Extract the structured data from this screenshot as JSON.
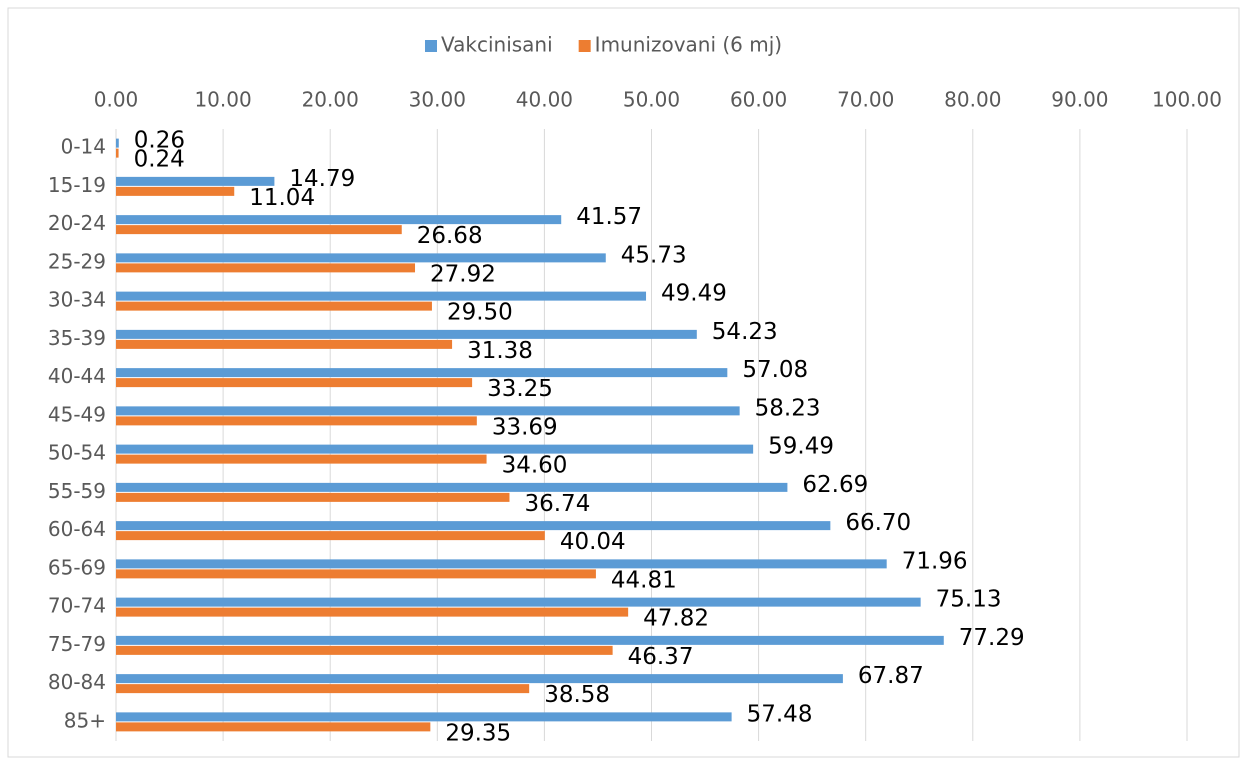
{
  "chart_data": {
    "type": "hbar",
    "categories": [
      "0-14",
      "15-19",
      "20-24",
      "25-29",
      "30-34",
      "35-39",
      "40-44",
      "45-49",
      "50-54",
      "55-59",
      "60-64",
      "65-69",
      "70-74",
      "75-79",
      "80-84",
      "85+"
    ],
    "series": [
      {
        "name": "Vakcinisani",
        "color": "#5b9bd5",
        "values": [
          0.26,
          14.79,
          41.57,
          45.73,
          49.49,
          54.23,
          57.08,
          58.23,
          59.49,
          62.69,
          66.7,
          71.96,
          75.13,
          77.29,
          67.87,
          57.48
        ],
        "value_labels": [
          "0.26",
          "14.79",
          "41.57",
          "45.73",
          "49.49",
          "54.23",
          "57.08",
          "58.23",
          "59.49",
          "62.69",
          "66.70",
          "71.96",
          "75.13",
          "77.29",
          "67.87",
          "57.48"
        ]
      },
      {
        "name": "Imunizovani (6 mj)",
        "color": "#ed7d31",
        "values": [
          0.24,
          11.04,
          26.68,
          27.92,
          29.5,
          31.38,
          33.25,
          33.69,
          34.6,
          36.74,
          40.04,
          44.81,
          47.82,
          46.37,
          38.58,
          29.35
        ],
        "value_labels": [
          "0.24",
          "11.04",
          "26.68",
          "27.92",
          "29.50",
          "31.38",
          "33.25",
          "33.69",
          "34.60",
          "36.74",
          "40.04",
          "44.81",
          "47.82",
          "46.37",
          "38.58",
          "29.35"
        ]
      }
    ],
    "xlim": [
      0,
      100
    ],
    "xticks": [
      {
        "value": 0,
        "label": "0.00"
      },
      {
        "value": 10,
        "label": "10.00"
      },
      {
        "value": 20,
        "label": "20.00"
      },
      {
        "value": 30,
        "label": "30.00"
      },
      {
        "value": 40,
        "label": "40.00"
      },
      {
        "value": 50,
        "label": "50.00"
      },
      {
        "value": 60,
        "label": "60.00"
      },
      {
        "value": 70,
        "label": "70.00"
      },
      {
        "value": 80,
        "label": "80.00"
      },
      {
        "value": 90,
        "label": "90.00"
      },
      {
        "value": 100,
        "label": "100.00"
      }
    ],
    "grid": true,
    "legend": "top"
  }
}
